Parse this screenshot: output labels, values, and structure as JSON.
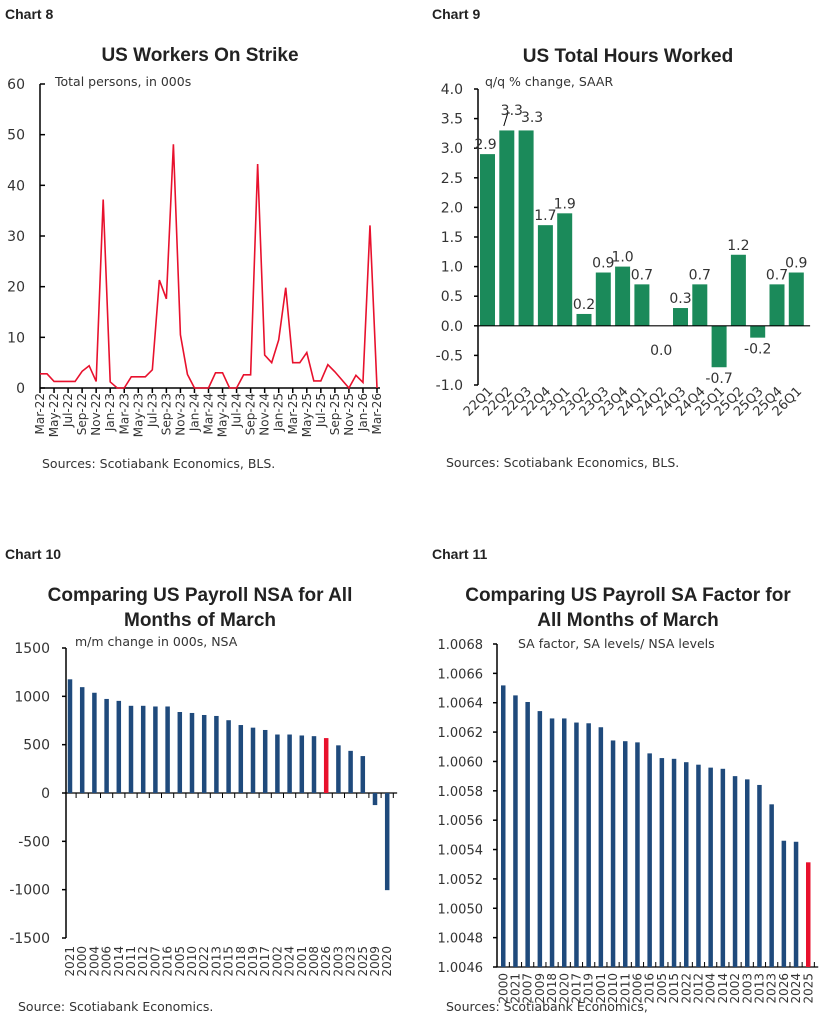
{
  "colors": {
    "red": "#e8112d",
    "green": "#1b8a5a",
    "navy": "#1f4a7c"
  },
  "chart_data": [
    {
      "panel": "Chart 8",
      "type": "line",
      "title": "US Workers On Strike",
      "subtitle": "Total persons, in 000s",
      "source": "Sources: Scotiabank Economics, BLS.",
      "ylim": [
        0,
        60
      ],
      "yticks": [
        "0",
        "10",
        "20",
        "30",
        "40",
        "50",
        "60"
      ],
      "xtick_labels": [
        "Mar-22",
        "May-22",
        "Jul-22",
        "Sep-22",
        "Nov-22",
        "Jan-23",
        "Mar-23",
        "May-23",
        "Jul-23",
        "Sep-23",
        "Nov-23",
        "Jan-24",
        "Mar-24",
        "May-24",
        "Jul-24",
        "Sep-24",
        "Nov-24",
        "Jan-25",
        "Mar-25",
        "May-25",
        "Jul-25",
        "Sep-25",
        "Nov-25",
        "Jan-26",
        "Mar-26"
      ],
      "x_start": "Mar-22",
      "x_end": "Mar-26",
      "frequency": "monthly",
      "values": [
        2.8,
        2.8,
        1.3,
        1.3,
        1.3,
        1.3,
        3.3,
        4.4,
        1.3,
        37.2,
        1.2,
        0,
        0,
        2.2,
        2.2,
        2.2,
        3.6,
        21.3,
        17.6,
        48.1,
        10.5,
        2.7,
        0,
        0,
        0,
        3.0,
        3.0,
        0,
        0,
        2.6,
        2.6,
        44.2,
        6.5,
        5.0,
        9.5,
        19.8,
        5.0,
        5.0,
        7.0,
        1.4,
        1.4,
        4.6,
        3.2,
        1.6,
        0,
        2.5,
        1.1,
        32.1,
        0
      ],
      "color": "#e8112d"
    },
    {
      "panel": "Chart 9",
      "type": "bar",
      "title": "US Total Hours Worked",
      "subtitle": "q/q % change, SAAR",
      "source": "Sources: Scotiabank Economics, BLS.",
      "ylim": [
        -1.0,
        4.0
      ],
      "yticks": [
        "-1.0",
        "-0.5",
        "0.0",
        "0.5",
        "1.0",
        "1.5",
        "2.0",
        "2.5",
        "3.0",
        "3.5",
        "4.0"
      ],
      "categories": [
        "22Q1",
        "22Q2",
        "22Q3",
        "22Q4",
        "23Q1",
        "23Q2",
        "23Q3",
        "23Q4",
        "24Q1",
        "24Q2",
        "24Q3",
        "24Q4",
        "25Q1",
        "25Q2",
        "25Q3",
        "25Q4",
        "26Q1"
      ],
      "values": [
        2.9,
        3.3,
        3.3,
        1.7,
        1.9,
        0.2,
        0.9,
        1.0,
        0.7,
        0.0,
        0.3,
        0.7,
        -0.7,
        1.2,
        -0.2,
        0.7,
        0.9
      ],
      "data_labels": [
        "2.9",
        "3.3",
        "3.3",
        "1.7",
        "1.9",
        "0.2",
        "0.9",
        "1.0",
        "0.7",
        "0.0",
        "0.3",
        "0.7",
        "-0.7",
        "1.2",
        "-0.2",
        "0.7",
        "0.9"
      ],
      "color": "#1b8a5a"
    },
    {
      "panel": "Chart 10",
      "type": "bar",
      "title": [
        "Comparing US Payroll NSA for All",
        "Months of March"
      ],
      "subtitle": "m/m change in 000s, NSA",
      "source": "Source: Scotiabank Economics.",
      "ylim": [
        -1500,
        1500
      ],
      "yticks": [
        "-1500",
        "-1000",
        "-500",
        "0",
        "500",
        "1000",
        "1500"
      ],
      "categories": [
        "2021",
        "2000",
        "2004",
        "2006",
        "2014",
        "2011",
        "2012",
        "2007",
        "2016",
        "2005",
        "2010",
        "2022",
        "2013",
        "2015",
        "2018",
        "2019",
        "2017",
        "2002",
        "2024",
        "2001",
        "2008",
        "2026",
        "2003",
        "2023",
        "2025",
        "2009",
        "2020"
      ],
      "values": [
        1176,
        1095,
        1037,
        973,
        953,
        902,
        902,
        895,
        895,
        838,
        828,
        807,
        797,
        753,
        703,
        676,
        652,
        605,
        605,
        595,
        588,
        568,
        493,
        436,
        382,
        -125,
        -1005
      ],
      "highlight": "2026",
      "color": "#1f4a7c",
      "highlight_color": "#e8112d"
    },
    {
      "panel": "Chart 11",
      "type": "bar",
      "title": [
        "Comparing US Payroll SA Factor for",
        "All Months of March"
      ],
      "subtitle": "SA factor, SA levels/ NSA levels",
      "source": "Sources: Scotiabank Economics,",
      "ylim": [
        1.0046,
        1.0068
      ],
      "yticks": [
        "1.0046",
        "1.0048",
        "1.0050",
        "1.0052",
        "1.0054",
        "1.0056",
        "1.0058",
        "1.0060",
        "1.0062",
        "1.0064",
        "1.0066",
        "1.0068"
      ],
      "categories": [
        "2000",
        "2021",
        "2007",
        "2009",
        "2018",
        "2020",
        "2017",
        "2019",
        "2001",
        "2010",
        "2011",
        "2006",
        "2016",
        "2005",
        "2015",
        "2022",
        "2012",
        "2004",
        "2014",
        "2002",
        "2003",
        "2013",
        "2023",
        "2026",
        "2024",
        "2025"
      ],
      "values": [
        1.006518,
        1.00645,
        1.006405,
        1.006343,
        1.006293,
        1.006293,
        1.006265,
        1.00626,
        1.006233,
        1.006143,
        1.006138,
        1.00613,
        1.006055,
        1.006023,
        1.006018,
        1.005995,
        1.005978,
        1.005958,
        1.00595,
        1.0059,
        1.005878,
        1.00584,
        1.005708,
        1.00546,
        1.005453,
        1.005313
      ],
      "highlight": "2025",
      "color": "#1f4a7c",
      "highlight_color": "#e8112d"
    }
  ]
}
